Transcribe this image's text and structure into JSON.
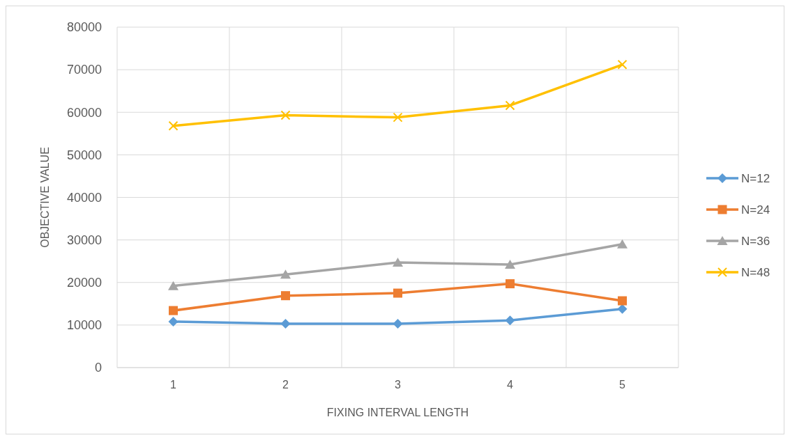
{
  "chart_data": {
    "type": "line",
    "xlabel": "FIXING INTERVAL LENGTH",
    "ylabel": "OBJECTIVE VALUE",
    "categories": [
      "1",
      "2",
      "3",
      "4",
      "5"
    ],
    "ylim": [
      0,
      80000
    ],
    "yticks": [
      0,
      10000,
      20000,
      30000,
      40000,
      50000,
      60000,
      70000,
      80000
    ],
    "grid": true,
    "legend": "right",
    "series": [
      {
        "name": "N=12",
        "color": "#5b9bd5",
        "marker": "diamond",
        "values": [
          10800,
          10300,
          10300,
          11100,
          13800
        ]
      },
      {
        "name": "N=24",
        "color": "#ed7d31",
        "marker": "square",
        "values": [
          13400,
          16900,
          17500,
          19700,
          15700
        ]
      },
      {
        "name": "N=36",
        "color": "#a5a5a5",
        "marker": "triangle",
        "values": [
          19200,
          21900,
          24700,
          24200,
          29000
        ]
      },
      {
        "name": "N=48",
        "color": "#ffc000",
        "marker": "cross",
        "values": [
          56800,
          59300,
          58800,
          61600,
          71200
        ]
      }
    ]
  }
}
